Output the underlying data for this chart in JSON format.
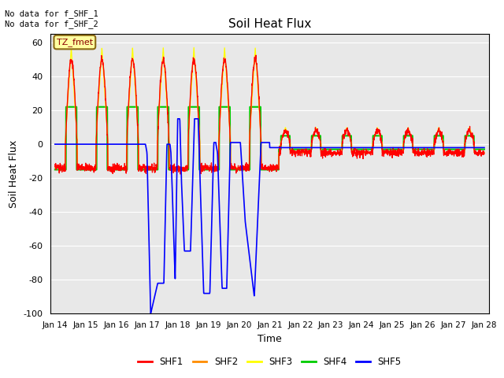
{
  "title": "Soil Heat Flux",
  "xlabel": "Time",
  "ylabel": "Soil Heat Flux",
  "text_annotations": [
    "No data for f_SHF_1",
    "No data for f_SHF_2"
  ],
  "box_label": "TZ_fmet",
  "ylim": [
    -100,
    65
  ],
  "yticks": [
    -100,
    -80,
    -60,
    -40,
    -20,
    0,
    20,
    40,
    60
  ],
  "xlim_start": 13.85,
  "xlim_end": 28.15,
  "xtick_labels": [
    "Jan 14",
    "Jan 15",
    "Jan 16",
    "Jan 17",
    "Jan 18",
    "Jan 19",
    "Jan 20",
    "Jan 21",
    "Jan 22",
    "Jan 23",
    "Jan 24",
    "Jan 25",
    "Jan 26",
    "Jan 27",
    "Jan 28"
  ],
  "xtick_positions": [
    14,
    15,
    16,
    17,
    18,
    19,
    20,
    21,
    22,
    23,
    24,
    25,
    26,
    27,
    28
  ],
  "colors": {
    "SHF1": "#FF0000",
    "SHF2": "#FF8C00",
    "SHF3": "#FFFF00",
    "SHF4": "#00CC00",
    "SHF5": "#0000FF"
  },
  "background_color": "#E8E8E8",
  "legend_entries": [
    "SHF1",
    "SHF2",
    "SHF3",
    "SHF4",
    "SHF5"
  ]
}
